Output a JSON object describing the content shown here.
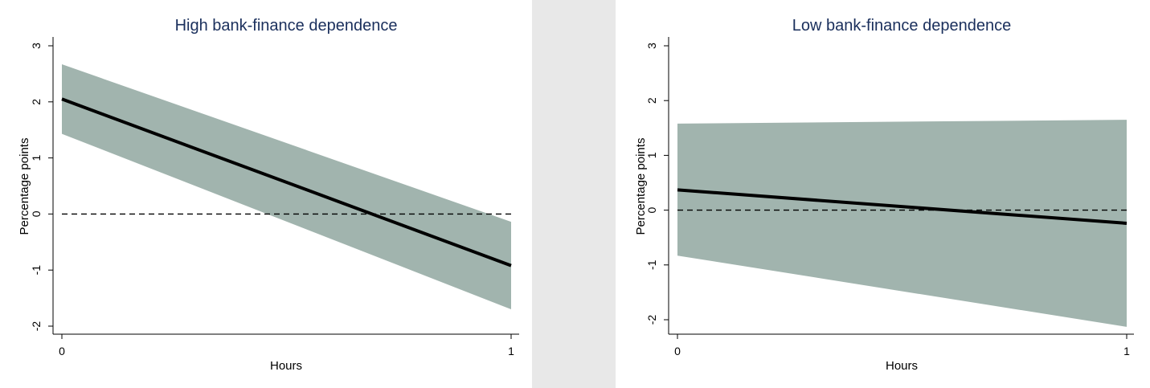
{
  "colors": {
    "band": "#a1b4ae",
    "line": "#000000",
    "title": "#1a2f5c",
    "zero_line": "#000000",
    "separator": "#e8e8e8"
  },
  "chart_data": [
    {
      "type": "area",
      "title": "High bank-finance dependence",
      "xlabel": "Hours",
      "ylabel": "Percentage points",
      "xlim": [
        0,
        1
      ],
      "ylim": [
        -2,
        3
      ],
      "x_ticks": [
        0,
        1
      ],
      "y_ticks": [
        -2,
        -1,
        0,
        1,
        2,
        3
      ],
      "grid": false,
      "reference_line": {
        "y": 0,
        "style": "dashed"
      },
      "series": [
        {
          "kind": "line",
          "x": [
            0,
            1
          ],
          "y": [
            2.05,
            -0.92
          ]
        },
        {
          "kind": "band",
          "x": [
            0,
            1
          ],
          "lower": [
            1.43,
            -1.7
          ],
          "upper": [
            2.67,
            -0.14
          ]
        }
      ]
    },
    {
      "type": "area",
      "title": "Low bank-finance dependence",
      "xlabel": "Hours",
      "ylabel": "Percentage points",
      "xlim": [
        0,
        1
      ],
      "ylim": [
        -2,
        3
      ],
      "x_ticks": [
        0,
        1
      ],
      "y_ticks": [
        -2,
        -1,
        0,
        1,
        2,
        3
      ],
      "grid": false,
      "reference_line": {
        "y": 0,
        "style": "dashed"
      },
      "series": [
        {
          "kind": "line",
          "x": [
            0,
            1
          ],
          "y": [
            0.37,
            -0.24
          ]
        },
        {
          "kind": "band",
          "x": [
            0,
            1
          ],
          "lower": [
            -0.83,
            -2.13
          ],
          "upper": [
            1.58,
            1.65
          ]
        }
      ]
    }
  ]
}
